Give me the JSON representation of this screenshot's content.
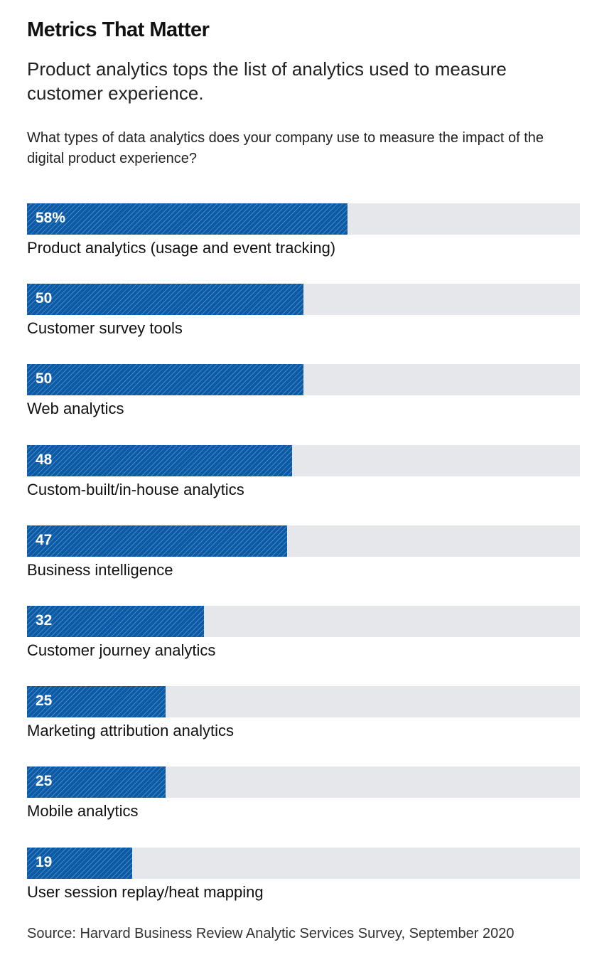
{
  "chart_data": {
    "type": "bar",
    "orientation": "horizontal",
    "title": "Metrics That Matter",
    "subtitle": "Product analytics tops the list of analytics used to measure customer experience.",
    "question": "What types of data analytics does your company use to measure the impact of the digital product experience?",
    "categories": [
      "Product analytics (usage and event tracking)",
      "Customer survey tools",
      "Web analytics",
      "Custom-built/in-house analytics",
      "Business intelligence",
      "Customer journey analytics",
      "Marketing attribution analytics",
      "Mobile analytics",
      "User session replay/heat mapping"
    ],
    "values": [
      58,
      50,
      50,
      48,
      47,
      32,
      25,
      25,
      19
    ],
    "value_labels": [
      "58%",
      "50",
      "50",
      "48",
      "47",
      "32",
      "25",
      "25",
      "19"
    ],
    "xlim": [
      0,
      100
    ],
    "source": "Source: Harvard Business Review Analytic Services Survey, September 2020",
    "colors": {
      "bar": "#0a5aa6",
      "track": "#e5e7ea"
    }
  }
}
